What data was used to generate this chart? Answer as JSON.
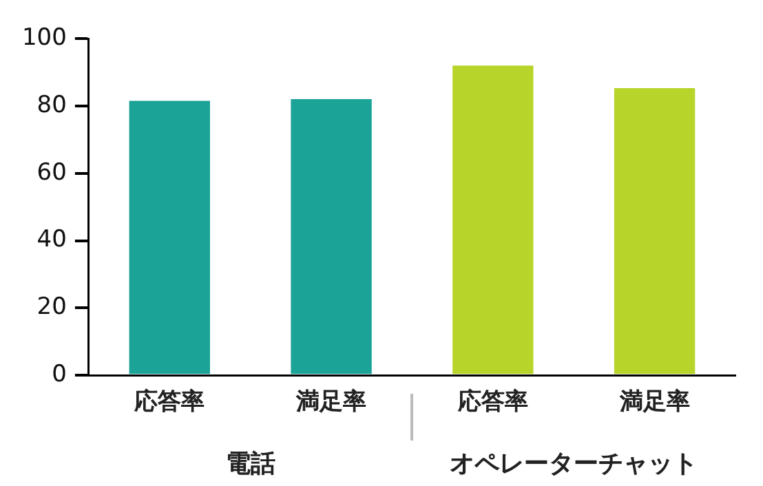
{
  "chart_data": {
    "type": "bar",
    "categories": [
      "応答率",
      "満足率",
      "応答率",
      "満足率"
    ],
    "values": [
      81.5,
      82,
      92,
      85.3
    ],
    "colors": [
      "#1aa396",
      "#1aa396",
      "#b7d42a",
      "#b7d42a"
    ],
    "ylim": [
      0,
      100
    ],
    "yticks": [
      0,
      20,
      40,
      60,
      80,
      100
    ],
    "grid": false,
    "annotations": [
      "電話",
      "オペレーターチャット"
    ]
  }
}
